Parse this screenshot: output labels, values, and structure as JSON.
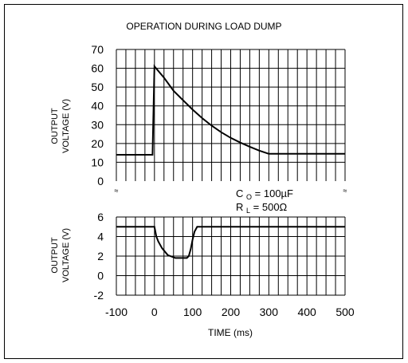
{
  "chart_data": {
    "type": "line",
    "title": "OPERATION DURING LOAD DUMP",
    "xlabel": "TIME (ms)",
    "x_ticks": [
      "-100",
      "0",
      "100",
      "200",
      "300",
      "400",
      "500"
    ],
    "xlim": [
      -100,
      500
    ],
    "annotation": {
      "c_main": "C",
      "c_sub": "O",
      "c_value": " = 100µF",
      "r_main": "R",
      "r_sub": "L",
      "r_value": " = 500Ω"
    },
    "panels": [
      {
        "ylabel_line1": "OUTPUT",
        "ylabel_line2": "VOLTAGE (V)",
        "ylim": [
          0,
          70
        ],
        "y_ticks": [
          "70",
          "60",
          "50",
          "40",
          "30",
          "20",
          "10",
          "0"
        ],
        "series": {
          "x": [
            -100,
            -5,
            -5,
            0,
            25,
            50,
            75,
            100,
            125,
            150,
            175,
            200,
            225,
            250,
            275,
            300,
            400,
            500
          ],
          "y": [
            14,
            14,
            14,
            61,
            55,
            48,
            43,
            38,
            33.5,
            29.5,
            26,
            23,
            20.5,
            18.3,
            16.2,
            14.5,
            14.5,
            14.5
          ]
        }
      },
      {
        "ylabel_line1": "OUTPUT",
        "ylabel_line2": "VOLTAGE (V)",
        "ylim": [
          -2,
          6
        ],
        "y_ticks": [
          "6",
          "4",
          "2",
          "0",
          "-2"
        ],
        "series": {
          "x": [
            -100,
            0,
            5,
            10,
            20,
            35,
            55,
            85,
            90,
            95,
            100,
            105,
            112,
            200,
            300,
            400,
            500
          ],
          "y": [
            5,
            5,
            4,
            3.5,
            2.8,
            2.1,
            1.8,
            1.8,
            2,
            2.7,
            3.7,
            4.5,
            5,
            5,
            5,
            5,
            5
          ]
        }
      }
    ]
  }
}
